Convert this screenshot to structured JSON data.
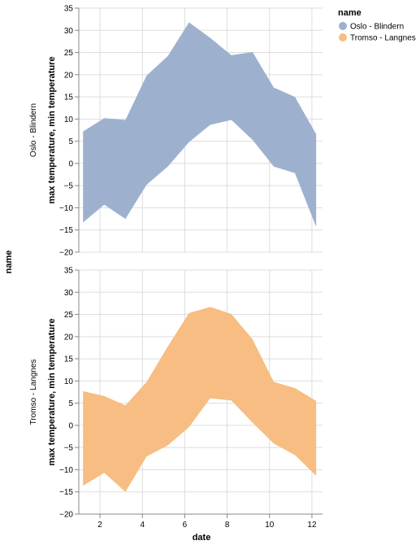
{
  "chart_data": {
    "type": "area",
    "row_title": "name",
    "xlabel": "date",
    "ylabel": "max temperature, min temperature",
    "xlim": [
      1,
      12.5
    ],
    "x_ticks": [
      2,
      4,
      6,
      8,
      10,
      12
    ],
    "ylim": [
      -20,
      35
    ],
    "y_ticks": [
      -20,
      -15,
      -10,
      -5,
      0,
      5,
      10,
      15,
      20,
      25,
      30,
      35
    ],
    "grid": true,
    "legend": {
      "title": "name",
      "placement": "top-right",
      "items": [
        {
          "label": "Oslo - Blindern",
          "color": "#9db1cf"
        },
        {
          "label": "Tromso - Langnes",
          "color": "#f7bd82"
        }
      ]
    },
    "facets": [
      {
        "label": "Oslo - Blindern",
        "color": "#9db1cf",
        "x": [
          1.2,
          2.2,
          3.2,
          4.2,
          5.2,
          6.2,
          7.2,
          8.2,
          9.2,
          10.2,
          11.2,
          12.2
        ],
        "max": [
          7.2,
          10.2,
          9.8,
          19.8,
          24.2,
          31.8,
          28.3,
          24.4,
          25.1,
          17.1,
          15.0,
          6.6
        ],
        "min": [
          -13.3,
          -9.3,
          -12.5,
          -4.8,
          -0.7,
          4.8,
          8.7,
          9.8,
          5.3,
          -0.7,
          -2.2,
          -14.3
        ]
      },
      {
        "label": "Tromso - Langnes",
        "color": "#f7bd82",
        "x": [
          1.2,
          2.2,
          3.2,
          4.2,
          5.2,
          6.2,
          7.2,
          8.2,
          9.2,
          10.2,
          11.2,
          12.2
        ],
        "max": [
          7.7,
          6.6,
          4.5,
          9.8,
          17.8,
          25.3,
          26.7,
          25.1,
          19.4,
          9.8,
          8.4,
          5.5
        ],
        "min": [
          -13.6,
          -10.7,
          -15.0,
          -7.0,
          -4.5,
          -0.4,
          6.1,
          5.6,
          0.6,
          -4.1,
          -6.7,
          -11.4
        ]
      }
    ]
  }
}
